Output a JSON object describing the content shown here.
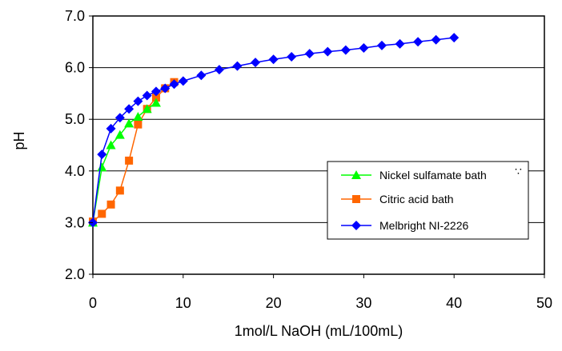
{
  "chart_data": {
    "type": "line",
    "title": "",
    "xlabel": "1mol/L NaOH (mL/100mL)",
    "ylabel": "pH",
    "xlim": [
      0,
      50
    ],
    "ylim": [
      2.0,
      7.0
    ],
    "x_ticks": [
      "0",
      "10",
      "20",
      "30",
      "40",
      "50"
    ],
    "y_ticks": [
      "2.0",
      "3.0",
      "4.0",
      "5.0",
      "6.0",
      "7.0"
    ],
    "grid": "horizontal",
    "legend_position": "right",
    "legend_extra_mark": "∵",
    "series": [
      {
        "name": "Nickel sulfamate bath",
        "color": "#00ff00",
        "marker": "triangle",
        "x": [
          0,
          1,
          2,
          3,
          4,
          5,
          6,
          7
        ],
        "y": [
          3.0,
          4.07,
          4.5,
          4.7,
          4.92,
          5.05,
          5.2,
          5.32
        ]
      },
      {
        "name": "Citric acid bath",
        "color": "#ff6600",
        "marker": "square",
        "x": [
          0,
          1,
          2,
          3,
          4,
          5,
          6,
          7,
          8,
          9
        ],
        "y": [
          3.02,
          3.17,
          3.35,
          3.62,
          4.2,
          4.9,
          5.2,
          5.42,
          5.6,
          5.72
        ]
      },
      {
        "name": "Melbright NI-2226",
        "color": "#0000ff",
        "marker": "diamond",
        "x": [
          0,
          1,
          2,
          3,
          4,
          5,
          6,
          7,
          8,
          9,
          10,
          12,
          14,
          16,
          18,
          20,
          22,
          24,
          26,
          28,
          30,
          32,
          34,
          36,
          38,
          40
        ],
        "y": [
          3.0,
          4.32,
          4.82,
          5.03,
          5.2,
          5.35,
          5.46,
          5.54,
          5.6,
          5.68,
          5.74,
          5.85,
          5.96,
          6.03,
          6.1,
          6.16,
          6.21,
          6.27,
          6.31,
          6.34,
          6.38,
          6.43,
          6.46,
          6.5,
          6.54,
          6.58
        ]
      }
    ]
  }
}
